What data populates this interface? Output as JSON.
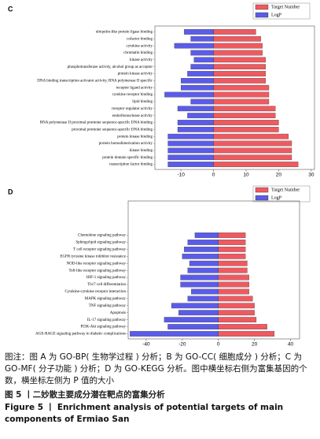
{
  "chart_data": [
    {
      "type": "diverging-bar",
      "label": "C",
      "categories": [
        "ubiquitin-like protein ligase binding",
        "cofactor binding",
        "cytokine activity",
        "chromatin binding",
        "kinase activity",
        "phosphotransferase activity, alcohol group as acceptor",
        "protein kinase activity",
        "DNA binding transcription activator activity, RNA polymerase II specific",
        "receptor ligand activity",
        "cytokine receptor binding",
        "lipid binding",
        "receptor regulator activity",
        "endoribonuclease activity",
        "RNA polymerase II proximal promoter sequence-specific DNA binding",
        "proximal promoter sequence-specific DNA binding",
        "protein kinase binding",
        "protein homodimerization activity",
        "kinase binding",
        "protein domain specific binding",
        "transcription factor binding"
      ],
      "series": [
        {
          "name": "Target Number",
          "color": "#ee5a60",
          "values": [
            13,
            14.5,
            15,
            15,
            16,
            16,
            16,
            16,
            17,
            17,
            17,
            19,
            19,
            20,
            20,
            23,
            24,
            24,
            24,
            26
          ]
        },
        {
          "name": "LogP",
          "color": "#5b5ce8",
          "values": [
            -9,
            -7,
            -12,
            -7,
            -6,
            -7,
            -8,
            -10,
            -10,
            -15,
            -7,
            -11,
            -8,
            -11,
            -11,
            -14,
            -14,
            -14,
            -14,
            -14
          ]
        }
      ],
      "xlim": [
        -18,
        31
      ],
      "xticks": [
        -10,
        0,
        10,
        20,
        30
      ],
      "legend": "top-right"
    },
    {
      "type": "diverging-bar",
      "label": "D",
      "categories": [
        "Chemokine signaling pathway",
        "Sphingolipid signaling pathway",
        "T cell receptor signaling pathway",
        "EGFR tyrosine kinase inhibitor resistance",
        "NOD-like receptor signaling pathway",
        "Toll-like receptor signaling pathway",
        "HIF-1 signaling pathway",
        "Th17 cell differentiation",
        "Cytokine-cytokine receptor interaction",
        "MAPK signaling pathway",
        "TNF signaling pathway",
        "Apoptosis",
        "IL-17 signaling pathway",
        "PI3K-Akt signaling pathway",
        "AGE-RAGE signaling pathway in diabetic complications"
      ],
      "series": [
        {
          "name": "Target Number",
          "color": "#ee5a60",
          "values": [
            15,
            15,
            15,
            15,
            16,
            16,
            17,
            17,
            17,
            19,
            20,
            20,
            21,
            27,
            31
          ]
        },
        {
          "name": "LogP",
          "color": "#5b5ce8",
          "values": [
            -13,
            -17,
            -19,
            -20,
            -16,
            -17,
            -21,
            -21,
            -15,
            -17,
            -26,
            -22,
            -30,
            -28,
            -49
          ]
        }
      ],
      "xlim": [
        -50,
        45
      ],
      "xticks": [
        -40,
        -20,
        0,
        20,
        40
      ],
      "legend": "top-right"
    }
  ],
  "caption": {
    "note": "图注：图 A 为 GO-BP( 生物学过程 ) 分析；B 为 GO-CC( 细胞成分 ) 分析；C 为 GO-MF( 分子功能 ) 分析；D 为 GO-KEGG 分析。图中横坐标右侧为富集基因的个数，横坐标左侧为 P 值的大小",
    "title_cn": "图 5 丨二妙散主要成分潜在靶点的富集分析",
    "title_en": "Figure 5 丨 Enrichment analysis of potential targets of main components of Ermiao San"
  }
}
